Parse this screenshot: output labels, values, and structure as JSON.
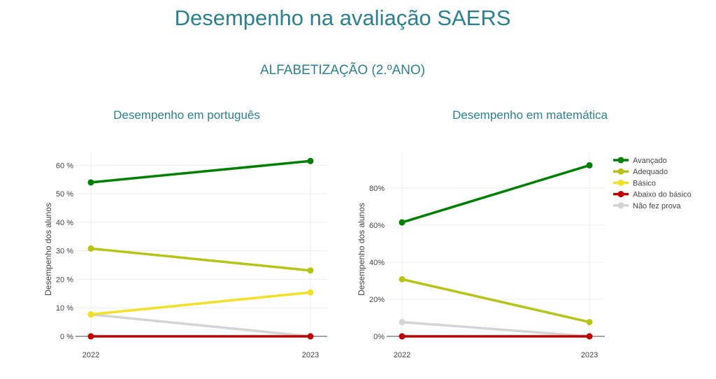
{
  "header": {
    "title": "Desempenho na avaliação SAERS",
    "section": "ALFABETIZAÇÃO (2.ºANO)"
  },
  "legend": [
    {
      "name": "Avançado",
      "color": "#008000"
    },
    {
      "name": "Adequado",
      "color": "#b8c414"
    },
    {
      "name": "Básico",
      "color": "#f2e024"
    },
    {
      "name": "Abaixo do básico",
      "color": "#c00000"
    },
    {
      "name": "Não fez prova",
      "color": "#d4d4d4"
    }
  ],
  "chart_data": [
    {
      "type": "line",
      "title": "Desempenho em português",
      "xlabel": "",
      "ylabel": "Desempenho dos alunos",
      "x": [
        "2022",
        "2023"
      ],
      "yticks": [
        0,
        10,
        20,
        30,
        40,
        50,
        60
      ],
      "ytick_labels": [
        "0 %",
        "10 %",
        "20 %",
        "30 %",
        "40 %",
        "50 %",
        "60 %"
      ],
      "ylim": [
        0,
        65
      ],
      "grid": true,
      "series": [
        {
          "name": "Avançado",
          "values": [
            54,
            61.5
          ]
        },
        {
          "name": "Adequado",
          "values": [
            30.8,
            23.1
          ]
        },
        {
          "name": "Básico",
          "values": [
            7.7,
            15.4
          ]
        },
        {
          "name": "Abaixo do básico",
          "values": [
            0,
            0
          ]
        },
        {
          "name": "Não fez prova",
          "values": [
            7.7,
            0
          ]
        }
      ]
    },
    {
      "type": "line",
      "title": "Desempenho em matemática",
      "xlabel": "",
      "ylabel": "Desempenho dos alunos",
      "x": [
        "2022",
        "2023"
      ],
      "yticks": [
        0,
        20,
        40,
        60,
        80
      ],
      "ytick_labels": [
        "0%",
        "20%",
        "40%",
        "60%",
        "80%"
      ],
      "ylim": [
        0,
        100
      ],
      "grid": true,
      "legend_position": "right",
      "series": [
        {
          "name": "Avançado",
          "values": [
            61.5,
            92.3
          ]
        },
        {
          "name": "Adequado",
          "values": [
            30.8,
            7.7
          ]
        },
        {
          "name": "Abaixo do básico",
          "values": [
            0,
            0
          ]
        },
        {
          "name": "Não fez prova",
          "values": [
            7.7,
            0
          ]
        }
      ]
    }
  ]
}
